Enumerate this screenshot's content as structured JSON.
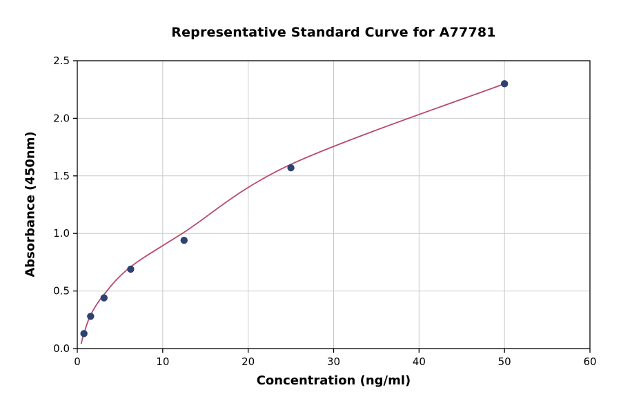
{
  "chart_data": {
    "type": "scatter",
    "title": "Representative Standard Curve for A77781",
    "xlabel": "Concentration (ng/ml)",
    "ylabel": "Absorbance (450nm)",
    "xlim": [
      0,
      60
    ],
    "ylim": [
      0,
      2.5
    ],
    "xticks": [
      0,
      10,
      20,
      30,
      40,
      50,
      60
    ],
    "xtick_labels": [
      "0",
      "10",
      "20",
      "30",
      "40",
      "50",
      "60"
    ],
    "yticks": [
      0,
      0.5,
      1,
      1.5,
      2,
      2.5
    ],
    "ytick_labels": [
      "0.0",
      "0.5",
      "1.0",
      "1.5",
      "2.0",
      "2.5"
    ],
    "grid": true,
    "legend": "none",
    "points": [
      [
        0.78,
        0.13
      ],
      [
        1.56,
        0.28
      ],
      [
        3.13,
        0.44
      ],
      [
        6.25,
        0.69
      ],
      [
        12.5,
        0.94
      ],
      [
        25,
        1.57
      ],
      [
        50,
        2.3
      ]
    ],
    "fit_curve": [
      [
        0.45,
        0.04
      ],
      [
        0.78,
        0.13
      ],
      [
        1.56,
        0.29
      ],
      [
        3.13,
        0.47
      ],
      [
        6.25,
        0.71
      ],
      [
        12.5,
        1.01
      ],
      [
        25,
        1.6
      ],
      [
        50,
        2.3
      ]
    ],
    "colors": {
      "curve": "#b8486e",
      "points": "#2e4272",
      "grid": "#c9c9c9",
      "axis": "#000000",
      "background": "#ffffff"
    }
  }
}
